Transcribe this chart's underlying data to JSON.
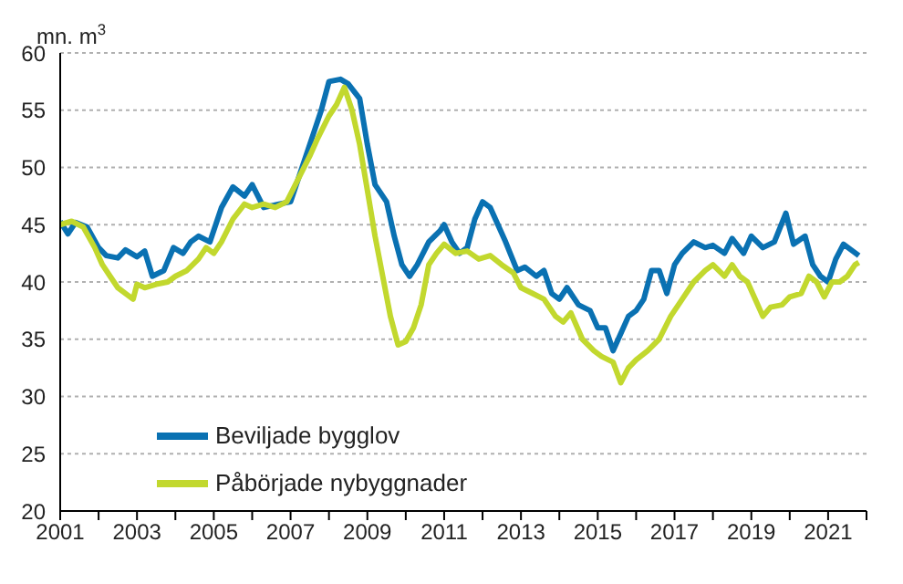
{
  "chart_data": {
    "type": "line",
    "ylabel": "mn. m$^{3}$",
    "xlim": [
      2001,
      2022
    ],
    "xticks": [
      2001,
      {
        "value": 2002,
        "label": null
      },
      2003,
      {
        "value": 2004,
        "label": null
      },
      2005,
      {
        "value": 2006,
        "label": null
      },
      2007,
      {
        "value": 2008,
        "label": null
      },
      2009,
      {
        "value": 2010,
        "label": null
      },
      2011,
      {
        "value": 2012,
        "label": null
      },
      2013,
      {
        "value": 2014,
        "label": null
      },
      2015,
      {
        "value": 2016,
        "label": null
      },
      2017,
      {
        "value": 2018,
        "label": null
      },
      2019,
      {
        "value": 2020,
        "label": null
      },
      2021,
      {
        "value": 2022,
        "label": null
      }
    ],
    "ylim": [
      20,
      60
    ],
    "yticks": [
      20,
      25,
      30,
      35,
      40,
      45,
      50,
      55,
      60
    ],
    "grid": "y",
    "legend": "bottom left",
    "marker": "none",
    "line_style": "solid",
    "series": [
      {
        "name": "Beviljade bygglov",
        "color": "#0a71b2",
        "x": [
          2001.0,
          2001.2,
          2001.4,
          2001.7,
          2002.0,
          2002.2,
          2002.5,
          2002.7,
          2003.0,
          2003.2,
          2003.4,
          2003.7,
          2003.95,
          2004.2,
          2004.4,
          2004.6,
          2004.9,
          2005.0,
          2005.2,
          2005.5,
          2005.8,
          2006.0,
          2006.3,
          2006.7,
          2007.0,
          2007.3,
          2007.6,
          2007.8,
          2008.0,
          2008.3,
          2008.5,
          2008.8,
          2009.0,
          2009.2,
          2009.5,
          2009.7,
          2009.9,
          2010.1,
          2010.3,
          2010.6,
          2010.9,
          2011.0,
          2011.2,
          2011.4,
          2011.6,
          2011.8,
          2012.0,
          2012.2,
          2012.4,
          2012.6,
          2012.9,
          2013.1,
          2013.4,
          2013.6,
          2013.8,
          2014.0,
          2014.2,
          2014.5,
          2014.8,
          2015.0,
          2015.2,
          2015.4,
          2015.6,
          2015.8,
          2016.0,
          2016.2,
          2016.4,
          2016.6,
          2016.8,
          2017.0,
          2017.2,
          2017.5,
          2017.8,
          2018.0,
          2018.3,
          2018.5,
          2018.8,
          2019.0,
          2019.3,
          2019.6,
          2019.9,
          2020.1,
          2020.4,
          2020.6,
          2020.8,
          2021.0,
          2021.2,
          2021.4,
          2021.6,
          2021.8
        ],
        "values": [
          45.3,
          44.2,
          45.2,
          44.8,
          43.0,
          42.3,
          42.1,
          42.8,
          42.2,
          42.7,
          40.5,
          41.0,
          43.0,
          42.5,
          43.5,
          44.0,
          43.5,
          44.5,
          46.5,
          48.3,
          47.5,
          48.5,
          46.5,
          46.8,
          47.0,
          50.0,
          53.0,
          55.0,
          57.5,
          57.7,
          57.3,
          56.0,
          52.0,
          48.5,
          47.0,
          44.0,
          41.5,
          40.5,
          41.5,
          43.5,
          44.5,
          45.0,
          43.5,
          42.5,
          43.0,
          45.5,
          47.0,
          46.5,
          45.0,
          43.5,
          41.0,
          41.3,
          40.5,
          41.0,
          39.0,
          38.5,
          39.5,
          38.0,
          37.5,
          36.0,
          36.0,
          34.0,
          35.5,
          37.0,
          37.5,
          38.5,
          41.0,
          41.0,
          39.0,
          41.5,
          42.5,
          43.5,
          43.0,
          43.2,
          42.5,
          43.8,
          42.5,
          44.0,
          43.0,
          43.5,
          46.0,
          43.3,
          44.0,
          41.5,
          40.5,
          40.0,
          42.0,
          43.3,
          42.8,
          42.3
        ]
      },
      {
        "name": "Påbörjade nybyggnader",
        "color": "#c2d82e",
        "x": [
          2001.0,
          2001.3,
          2001.6,
          2001.9,
          2002.1,
          2002.3,
          2002.5,
          2002.7,
          2002.9,
          2003.0,
          2003.2,
          2003.5,
          2003.8,
          2004.0,
          2004.3,
          2004.6,
          2004.8,
          2005.0,
          2005.2,
          2005.5,
          2005.8,
          2006.0,
          2006.3,
          2006.6,
          2006.9,
          2007.2,
          2007.5,
          2007.7,
          2008.0,
          2008.2,
          2008.4,
          2008.6,
          2008.8,
          2009.0,
          2009.2,
          2009.4,
          2009.6,
          2009.8,
          2010.0,
          2010.2,
          2010.4,
          2010.6,
          2010.8,
          2011.0,
          2011.3,
          2011.6,
          2011.9,
          2012.2,
          2012.5,
          2012.8,
          2013.0,
          2013.3,
          2013.6,
          2013.9,
          2014.1,
          2014.3,
          2014.6,
          2014.9,
          2015.1,
          2015.4,
          2015.6,
          2015.8,
          2016.0,
          2016.3,
          2016.6,
          2016.9,
          2017.2,
          2017.5,
          2017.8,
          2018.0,
          2018.3,
          2018.5,
          2018.7,
          2018.9,
          2019.1,
          2019.3,
          2019.5,
          2019.8,
          2020.0,
          2020.3,
          2020.5,
          2020.7,
          2020.9,
          2021.1,
          2021.3,
          2021.5,
          2021.7,
          2021.8
        ],
        "values": [
          45.0,
          45.3,
          44.8,
          43.0,
          41.5,
          40.5,
          39.5,
          39.0,
          38.5,
          39.8,
          39.5,
          39.8,
          40.0,
          40.5,
          41.0,
          42.0,
          43.0,
          42.5,
          43.5,
          45.5,
          46.8,
          46.5,
          46.8,
          46.5,
          47.0,
          49.0,
          51.0,
          52.5,
          54.5,
          55.5,
          57.0,
          55.0,
          52.0,
          48.0,
          44.0,
          40.5,
          37.0,
          34.5,
          34.8,
          36.0,
          38.0,
          41.5,
          42.5,
          43.3,
          42.5,
          42.7,
          42.0,
          42.3,
          41.5,
          40.8,
          39.5,
          39.0,
          38.5,
          37.0,
          36.5,
          37.3,
          35.0,
          34.0,
          33.5,
          33.0,
          31.2,
          32.5,
          33.2,
          34.0,
          35.0,
          37.0,
          38.5,
          40.0,
          41.0,
          41.5,
          40.5,
          41.5,
          40.5,
          40.0,
          38.5,
          37.0,
          37.8,
          38.0,
          38.7,
          39.0,
          40.5,
          40.0,
          38.7,
          40.0,
          40.0,
          40.5,
          41.5,
          41.7
        ]
      }
    ]
  }
}
